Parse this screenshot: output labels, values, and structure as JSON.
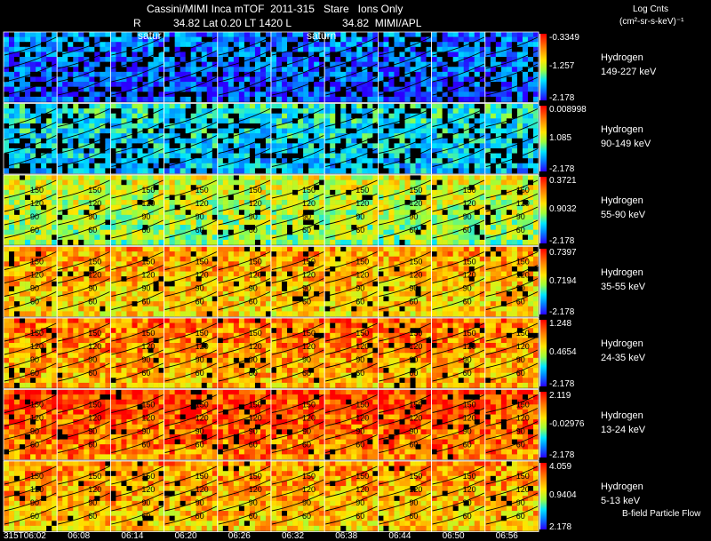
{
  "header": {
    "title": "Cassini/MIMI Inca mTOF  2011-315   Stare   Ions Only",
    "r_label": "R",
    "position": "34.82 Lat 0.20 LT 1420 L",
    "l_value": "34.82  MIMI/APL",
    "satur_left": "satur",
    "satur_right": "saturn"
  },
  "units": {
    "line1": "Log Cnts",
    "line2": "(cm²-sr-s-keV)⁻¹"
  },
  "footer": {
    "bfield": "B-field Particle Flow"
  },
  "chart_data": {
    "type": "heatmap",
    "title": "Cassini/MIMI Inca mTOF  2011-315   Stare   Ions Only",
    "x_ticks": [
      "315T06:02",
      "06:08",
      "06:14",
      "06:20",
      "06:26",
      "06:32",
      "06:38",
      "06:44",
      "06:50",
      "06:56"
    ],
    "contour_labels": [
      "60",
      "90",
      "120",
      "150"
    ],
    "colorscale": [
      "#2b00ff",
      "#0090ff",
      "#00e5ff",
      "#9cff3c",
      "#ffe600",
      "#ff7a00",
      "#ff0000"
    ],
    "rows": [
      {
        "species": "Hydrogen",
        "energy": "149-227 keV",
        "cmax": "-0.3349",
        "cmid": "-1.257",
        "cmin": "-2.178",
        "level": 0.12
      },
      {
        "species": "Hydrogen",
        "energy": "90-149 keV",
        "cmax": "0.008998",
        "cmid": "1.085",
        "cmin": "-2.178",
        "level": 0.3
      },
      {
        "species": "Hydrogen",
        "energy": "55-90 keV",
        "cmax": "0.3721",
        "cmid": "0.9032",
        "cmin": "-2.178",
        "level": 0.55
      },
      {
        "species": "Hydrogen",
        "energy": "35-55 keV",
        "cmax": "0.7397",
        "cmid": "0.7194",
        "cmin": "-2.178",
        "level": 0.72
      },
      {
        "species": "Hydrogen",
        "energy": "24-35 keV",
        "cmax": "1.248",
        "cmid": "0.4654",
        "cmin": "-2.178",
        "level": 0.78
      },
      {
        "species": "Hydrogen",
        "energy": "13-24 keV",
        "cmax": "2.119",
        "cmid": "-0.02976",
        "cmin": "-2.178",
        "level": 0.86
      },
      {
        "species": "Hydrogen",
        "energy": "5-13 keV",
        "cmax": "4.059",
        "cmid": "0.9404",
        "cmin": "2.178",
        "level": 0.74
      }
    ]
  }
}
